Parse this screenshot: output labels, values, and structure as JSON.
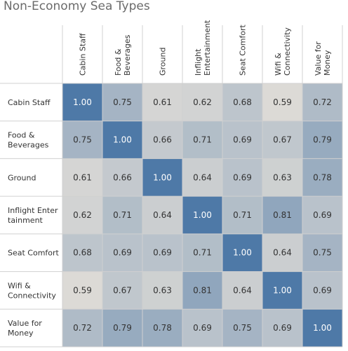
{
  "title": "Non-Economy Sea Types",
  "chart_data": {
    "type": "heatmap",
    "title": "Non-Economy Sea Types",
    "columns": [
      {
        "lines": [
          "Cabin Staff"
        ]
      },
      {
        "lines": [
          "Food &",
          "Beverages"
        ]
      },
      {
        "lines": [
          "Ground"
        ]
      },
      {
        "lines": [
          "Inflight",
          "Entertainment"
        ]
      },
      {
        "lines": [
          "Seat Comfort"
        ]
      },
      {
        "lines": [
          "Wifi &",
          "Connectivity"
        ]
      },
      {
        "lines": [
          "Value for",
          "Money"
        ]
      }
    ],
    "rows": [
      {
        "lines": [
          "Cabin Staff"
        ]
      },
      {
        "lines": [
          "Food &",
          "Beverages"
        ]
      },
      {
        "lines": [
          "Ground"
        ]
      },
      {
        "lines": [
          "Inflight Enter",
          "tainment"
        ]
      },
      {
        "lines": [
          "Seat Comfort"
        ]
      },
      {
        "lines": [
          "Wifi &",
          "Connectivity"
        ]
      },
      {
        "lines": [
          "Value for",
          "Money"
        ]
      }
    ],
    "values": [
      [
        1.0,
        0.75,
        0.61,
        0.62,
        0.68,
        0.59,
        0.72
      ],
      [
        0.75,
        1.0,
        0.66,
        0.71,
        0.69,
        0.67,
        0.79
      ],
      [
        0.61,
        0.66,
        1.0,
        0.64,
        0.69,
        0.63,
        0.78
      ],
      [
        0.62,
        0.71,
        0.64,
        1.0,
        0.71,
        0.81,
        0.69
      ],
      [
        0.68,
        0.69,
        0.69,
        0.71,
        1.0,
        0.64,
        0.75
      ],
      [
        0.59,
        0.67,
        0.63,
        0.81,
        0.64,
        1.0,
        0.69
      ],
      [
        0.72,
        0.79,
        0.78,
        0.69,
        0.75,
        0.69,
        1.0
      ]
    ],
    "color_low": "#dcdad6",
    "color_high": "#4e79a7"
  }
}
